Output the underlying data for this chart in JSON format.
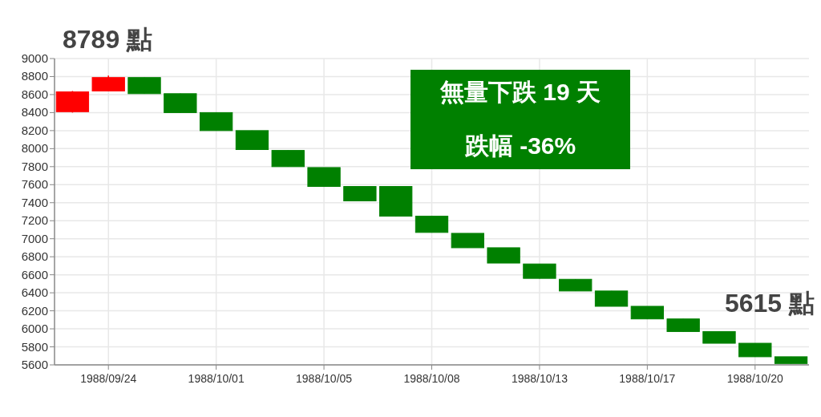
{
  "chart_data": {
    "type": "candlestick",
    "categories": [
      null,
      "1988/09/24",
      null,
      null,
      "1988/10/01",
      null,
      null,
      "1988/10/05",
      null,
      null,
      "1988/10/08",
      null,
      null,
      "1988/10/13",
      null,
      null,
      "1988/10/17",
      null,
      null,
      "1988/10/20",
      null
    ],
    "ohlc": [
      [
        8410,
        8640,
        8400,
        8630
      ],
      [
        8640,
        8810,
        8640,
        8789
      ],
      [
        8789,
        8789,
        8610,
        8610
      ],
      [
        8610,
        8610,
        8400,
        8400
      ],
      [
        8400,
        8400,
        8200,
        8200
      ],
      [
        8200,
        8200,
        7990,
        7990
      ],
      [
        7980,
        7980,
        7800,
        7800
      ],
      [
        7790,
        7790,
        7580,
        7580
      ],
      [
        7580,
        7580,
        7420,
        7420
      ],
      [
        7580,
        7580,
        7250,
        7250
      ],
      [
        7250,
        7250,
        7070,
        7070
      ],
      [
        7060,
        7060,
        6900,
        6900
      ],
      [
        6900,
        6900,
        6730,
        6730
      ],
      [
        6720,
        6720,
        6560,
        6560
      ],
      [
        6550,
        6550,
        6420,
        6420
      ],
      [
        6420,
        6420,
        6250,
        6250
      ],
      [
        6250,
        6250,
        6110,
        6110
      ],
      [
        6110,
        6110,
        5970,
        5970
      ],
      [
        5970,
        5970,
        5840,
        5840
      ],
      [
        5840,
        5840,
        5690,
        5690
      ],
      [
        5690,
        5690,
        5615,
        5615
      ]
    ],
    "colors": [
      "#ff0000",
      "#ff0000",
      "#008000",
      "#008000",
      "#008000",
      "#008000",
      "#008000",
      "#008000",
      "#008000",
      "#008000",
      "#008000",
      "#008000",
      "#008000",
      "#008000",
      "#008000",
      "#008000",
      "#008000",
      "#008000",
      "#008000",
      "#008000",
      "#008000"
    ],
    "ylim": [
      5600,
      9000
    ],
    "yticks": [
      5600,
      5800,
      6000,
      6200,
      6400,
      6600,
      6800,
      7000,
      7200,
      7400,
      7600,
      7800,
      8000,
      8200,
      8400,
      8600,
      8800,
      9000
    ],
    "grid": true,
    "annotations": [
      "8789 點",
      "無量下跌 19 天",
      "跌幅 -36%",
      "5615 點"
    ]
  }
}
